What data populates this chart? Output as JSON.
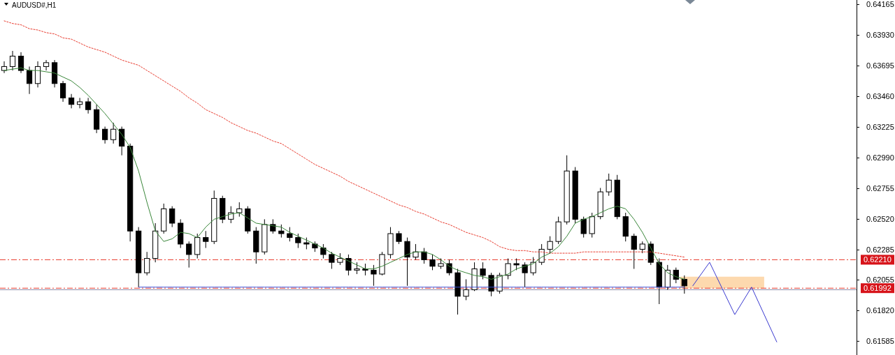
{
  "chart_data": {
    "type": "candlestick",
    "title": "AUDUSD#,H1",
    "color": "#000000",
    "categories": [
      null,
      null,
      null,
      null,
      null,
      null,
      null,
      null,
      null,
      null,
      null,
      null,
      null,
      null,
      null,
      null,
      null,
      null,
      null,
      null,
      null,
      null,
      null,
      null,
      null,
      null,
      null,
      null,
      null,
      null,
      null,
      null,
      null,
      null,
      null,
      null,
      null,
      null,
      null,
      null,
      null,
      null,
      null,
      null,
      null,
      null,
      null,
      null,
      null,
      null,
      null,
      null,
      null,
      null,
      null,
      null,
      null,
      null,
      null,
      null,
      null,
      null,
      null,
      null,
      null,
      null,
      null,
      null,
      null,
      null,
      null,
      null,
      null,
      null,
      null,
      null,
      null,
      null,
      null,
      null,
      null,
      null,
      null,
      null,
      null,
      null,
      null,
      null,
      null,
      null,
      null,
      null,
      null,
      null,
      null,
      null,
      null,
      null,
      null,
      null,
      null,
      null
    ],
    "ohlc": [
      [
        0.6366,
        0.6373,
        0.6364,
        0.6369
      ],
      [
        0.6369,
        0.6381,
        0.6366,
        0.6377
      ],
      [
        0.6377,
        0.638,
        0.6364,
        0.6366
      ],
      [
        0.6366,
        0.6369,
        0.6348,
        0.6356
      ],
      [
        0.6356,
        0.6373,
        0.6353,
        0.6369
      ],
      [
        0.6369,
        0.6374,
        0.6366,
        0.6372
      ],
      [
        0.6372,
        0.6374,
        0.6353,
        0.6356
      ],
      [
        0.6356,
        0.6358,
        0.6342,
        0.6345
      ],
      [
        0.6345,
        0.6348,
        0.6337,
        0.634
      ],
      [
        0.634,
        0.6345,
        0.6337,
        0.6342
      ],
      [
        0.6342,
        0.6345,
        0.6333,
        0.6336
      ],
      [
        0.6336,
        0.634,
        0.6318,
        0.6321
      ],
      [
        0.6321,
        0.6323,
        0.631,
        0.6313
      ],
      [
        0.6313,
        0.6326,
        0.631,
        0.6321
      ],
      [
        0.6321,
        0.6323,
        0.6301,
        0.6308
      ],
      [
        0.6308,
        0.631,
        0.6235,
        0.6243
      ],
      [
        0.6243,
        0.6246,
        0.62,
        0.6211
      ],
      [
        0.6211,
        0.6227,
        0.6209,
        0.6222
      ],
      [
        0.6222,
        0.6249,
        0.6219,
        0.6243
      ],
      [
        0.6243,
        0.6264,
        0.6241,
        0.626
      ],
      [
        0.626,
        0.6262,
        0.6246,
        0.6249
      ],
      [
        0.6249,
        0.6252,
        0.623,
        0.6233
      ],
      [
        0.6233,
        0.6235,
        0.6215,
        0.6225
      ],
      [
        0.6225,
        0.6241,
        0.6222,
        0.6238
      ],
      [
        0.6238,
        0.6243,
        0.623,
        0.6235
      ],
      [
        0.6235,
        0.6274,
        0.6233,
        0.6268
      ],
      [
        0.6268,
        0.627,
        0.6249,
        0.6252
      ],
      [
        0.6252,
        0.6262,
        0.6249,
        0.6257
      ],
      [
        0.6257,
        0.6265,
        0.6254,
        0.626
      ],
      [
        0.626,
        0.6262,
        0.6241,
        0.6243
      ],
      [
        0.6243,
        0.6246,
        0.6218,
        0.6227
      ],
      [
        0.6227,
        0.6252,
        0.6225,
        0.6248
      ],
      [
        0.6248,
        0.6252,
        0.6241,
        0.6243
      ],
      [
        0.6243,
        0.6248,
        0.6238,
        0.6241
      ],
      [
        0.6241,
        0.6246,
        0.6235,
        0.6238
      ],
      [
        0.6238,
        0.6241,
        0.623,
        0.6234
      ],
      [
        0.6234,
        0.6238,
        0.6229,
        0.6233
      ],
      [
        0.6233,
        0.6235,
        0.6227,
        0.623
      ],
      [
        0.623,
        0.6233,
        0.6222,
        0.6225
      ],
      [
        0.6225,
        0.6227,
        0.6214,
        0.6219
      ],
      [
        0.6219,
        0.6226,
        0.6217,
        0.6222
      ],
      [
        0.6222,
        0.6225,
        0.6209,
        0.6213
      ],
      [
        0.6213,
        0.6219,
        0.621,
        0.6214
      ],
      [
        0.6214,
        0.6218,
        0.6209,
        0.6213
      ],
      [
        0.6213,
        0.6217,
        0.6201,
        0.621
      ],
      [
        0.621,
        0.6227,
        0.6209,
        0.6225
      ],
      [
        0.6225,
        0.6246,
        0.6222,
        0.6241
      ],
      [
        0.6241,
        0.6243,
        0.6233,
        0.6235
      ],
      [
        0.6235,
        0.6238,
        0.6201,
        0.6223
      ],
      [
        0.6223,
        0.6233,
        0.6221,
        0.6227
      ],
      [
        0.6227,
        0.623,
        0.6218,
        0.6221
      ],
      [
        0.6221,
        0.6225,
        0.6213,
        0.6216
      ],
      [
        0.6216,
        0.6222,
        0.6214,
        0.6218
      ],
      [
        0.6218,
        0.6221,
        0.6209,
        0.6211
      ],
      [
        0.6211,
        0.6214,
        0.6179,
        0.6193
      ],
      [
        0.6193,
        0.6206,
        0.619,
        0.6198
      ],
      [
        0.6198,
        0.6219,
        0.6197,
        0.6214
      ],
      [
        0.6214,
        0.6219,
        0.6206,
        0.6209
      ],
      [
        0.6209,
        0.6211,
        0.6193,
        0.6197
      ],
      [
        0.6197,
        0.6211,
        0.6195,
        0.6209
      ],
      [
        0.6209,
        0.6222,
        0.6206,
        0.6218
      ],
      [
        0.6218,
        0.6222,
        0.6213,
        0.6217
      ],
      [
        0.6217,
        0.6219,
        0.62,
        0.6211
      ],
      [
        0.6211,
        0.6223,
        0.6209,
        0.6219
      ],
      [
        0.6219,
        0.6233,
        0.6217,
        0.6229
      ],
      [
        0.6229,
        0.6239,
        0.6226,
        0.6235
      ],
      [
        0.6235,
        0.6254,
        0.6233,
        0.625
      ],
      [
        0.625,
        0.6301,
        0.6248,
        0.6289
      ],
      [
        0.6289,
        0.6292,
        0.6249,
        0.6252
      ],
      [
        0.6252,
        0.6254,
        0.6238,
        0.6241
      ],
      [
        0.6241,
        0.6257,
        0.6238,
        0.6254
      ],
      [
        0.6254,
        0.6276,
        0.6252,
        0.6273
      ],
      [
        0.6273,
        0.6287,
        0.627,
        0.6282
      ],
      [
        0.6282,
        0.6286,
        0.6252,
        0.6254
      ],
      [
        0.6254,
        0.6257,
        0.6235,
        0.6239
      ],
      [
        0.6239,
        0.6241,
        0.6214,
        0.6229
      ],
      [
        0.6229,
        0.6235,
        0.6226,
        0.6233
      ],
      [
        0.6233,
        0.6235,
        0.6217,
        0.6219
      ],
      [
        0.6219,
        0.6222,
        0.6187,
        0.62
      ],
      [
        0.62,
        0.6217,
        0.6198,
        0.6213
      ],
      [
        0.6213,
        0.6215,
        0.6203,
        0.6206
      ],
      [
        0.6206,
        0.6209,
        0.6195,
        0.6201
      ],
      null,
      null,
      null,
      null,
      null,
      null,
      null,
      null,
      null,
      null,
      null,
      null,
      null,
      null,
      null,
      null,
      null,
      null,
      null,
      null
    ],
    "series": [
      {
        "type": "line",
        "color": "#e8382b",
        "line_style": "dotted",
        "values": [
          0.6404,
          0.6402,
          0.6401,
          0.6398,
          0.6397,
          0.6395,
          0.6394,
          0.6391,
          0.639,
          0.6387,
          0.6384,
          0.6382,
          0.638,
          0.6377,
          0.6374,
          0.6372,
          0.637,
          0.6366,
          0.6362,
          0.6358,
          0.6354,
          0.635,
          0.6345,
          0.6341,
          0.6336,
          0.6333,
          0.633,
          0.6326,
          0.6323,
          0.632,
          0.6318,
          0.6315,
          0.6312,
          0.631,
          0.6306,
          0.6302,
          0.6298,
          0.6294,
          0.6291,
          0.6288,
          0.6285,
          0.6281,
          0.6278,
          0.6275,
          0.6272,
          0.6269,
          0.6266,
          0.6263,
          0.6261,
          0.6258,
          0.6256,
          0.6253,
          0.625,
          0.6248,
          0.6245,
          0.6242,
          0.624,
          0.6238,
          0.6235,
          0.6231,
          0.6229,
          0.6228,
          0.6228,
          0.6227,
          0.6227,
          0.6226,
          0.6226,
          0.6226,
          0.6226,
          0.6227,
          0.6227,
          0.6227,
          0.6227,
          0.6227,
          0.6227,
          0.6227,
          0.6227,
          0.6227,
          0.6226,
          0.6225,
          0.6224,
          0.6223,
          null,
          null,
          null,
          null,
          null,
          null,
          null,
          null,
          null,
          null,
          null,
          null,
          null,
          null,
          null,
          null,
          null,
          null,
          null,
          null
        ]
      },
      {
        "type": "line",
        "color": "#3a873a",
        "line_style": "solid",
        "values": [
          0.6366,
          0.6367,
          0.6368,
          0.6366,
          0.6366,
          0.6365,
          0.6364,
          0.6361,
          0.6358,
          0.6353,
          0.6347,
          0.634,
          0.6333,
          0.6325,
          0.6317,
          0.6307,
          0.6289,
          0.6265,
          0.6243,
          0.6235,
          0.6237,
          0.6242,
          0.6241,
          0.6238,
          0.6246,
          0.6252,
          0.6254,
          0.6256,
          0.6257,
          0.6253,
          0.6249,
          0.6248,
          0.6247,
          0.6246,
          0.6242,
          0.6239,
          0.6236,
          0.6233,
          0.623,
          0.6226,
          0.6223,
          0.622,
          0.6217,
          0.6214,
          0.6214,
          0.6216,
          0.6219,
          0.6222,
          0.6225,
          0.6227,
          0.6227,
          0.6225,
          0.6221,
          0.6216,
          0.6213,
          0.6211,
          0.6209,
          0.6208,
          0.6206,
          0.6208,
          0.621,
          0.6214,
          0.6216,
          0.6218,
          0.6223,
          0.6226,
          0.6231,
          0.6239,
          0.6249,
          0.6252,
          0.6254,
          0.6257,
          0.626,
          0.6262,
          0.626,
          0.6252,
          0.6242,
          0.623,
          0.6218,
          0.6211,
          0.6208,
          0.6206,
          null,
          null,
          null,
          null,
          null,
          null,
          null,
          null,
          null,
          null,
          null,
          null,
          null,
          null,
          null,
          null,
          null,
          null,
          null,
          null
        ]
      },
      {
        "type": "line",
        "color": "#3c50d8",
        "line_style": "solid",
        "values": [
          null,
          null,
          null,
          null,
          null,
          null,
          null,
          null,
          null,
          null,
          null,
          null,
          null,
          null,
          null,
          null,
          0.62,
          0.62,
          0.62,
          0.62,
          0.62,
          0.62,
          0.62,
          0.62,
          0.62,
          0.62,
          0.62,
          0.62,
          0.62,
          0.62,
          0.62,
          0.62,
          0.62,
          0.62,
          0.62,
          0.62,
          0.62,
          0.62,
          0.62,
          0.62,
          0.62,
          0.62,
          0.62,
          0.62,
          0.62,
          0.62,
          0.62,
          0.62,
          0.62,
          0.62,
          0.62,
          0.62,
          0.62,
          0.62,
          0.62,
          0.62,
          0.62,
          0.62,
          0.62,
          0.62,
          0.62,
          0.62,
          0.62,
          0.62,
          0.62,
          0.62,
          0.62,
          0.62,
          0.62,
          0.62,
          0.62,
          0.62,
          0.62,
          0.62,
          0.62,
          0.62,
          0.62,
          0.62,
          0.62,
          0.62,
          0.62,
          0.62,
          null,
          null,
          null,
          null,
          null,
          null,
          null,
          null,
          null,
          null,
          null,
          null,
          null,
          null,
          null,
          null,
          null,
          null,
          null,
          null
        ]
      },
      {
        "type": "line",
        "color": "#3a3ad0",
        "line_style": "solid",
        "values": [
          null,
          null,
          null,
          null,
          null,
          null,
          null,
          null,
          null,
          null,
          null,
          null,
          null,
          null,
          null,
          null,
          null,
          null,
          null,
          null,
          null,
          null,
          null,
          null,
          null,
          null,
          null,
          null,
          null,
          null,
          null,
          null,
          null,
          null,
          null,
          null,
          null,
          null,
          null,
          null,
          null,
          null,
          null,
          null,
          null,
          null,
          null,
          null,
          null,
          null,
          null,
          null,
          null,
          null,
          null,
          null,
          null,
          null,
          null,
          null,
          null,
          null,
          null,
          null,
          null,
          null,
          null,
          null,
          null,
          null,
          null,
          null,
          null,
          null,
          null,
          null,
          null,
          null,
          null,
          null,
          null,
          null,
          0.6201,
          null,
          0.6219,
          null,
          null,
          0.6179,
          null,
          0.62,
          null,
          null,
          0.6158,
          null,
          null,
          null,
          null,
          null,
          null,
          null,
          null,
          null
        ]
      }
    ],
    "bands": [
      {
        "axis": "y",
        "from": 0.6199,
        "to": 0.6208,
        "color": "#fdd9ae"
      }
    ],
    "ref_lines": [
      {
        "axis": "y",
        "value": 0.6221,
        "label": "0.62210",
        "color": "#e8382b",
        "line_style": "dashed"
      },
      {
        "axis": "y",
        "value": 0.61992,
        "label": "0.61992",
        "color": "#e8382b",
        "line_style": "dashed"
      },
      {
        "axis": "y",
        "value": 0.6198,
        "label": null,
        "color": "#8c8ca8",
        "line_style": "solid"
      }
    ],
    "ylim": [
      0.6148,
      0.642
    ],
    "yticks": [
      0.64165,
      {
        "value": 0.6393,
        "label": "0.63930"
      },
      0.63695,
      {
        "value": 0.6346,
        "label": "0.63460"
      },
      0.63225,
      {
        "value": 0.6299,
        "label": "0.62990"
      },
      0.62755,
      {
        "value": 0.6252,
        "label": "0.62520"
      },
      0.62285,
      0.62055,
      {
        "value": 0.6182,
        "label": "0.61820"
      },
      0.61585
    ],
    "tick_labels": "y",
    "grid": false
  }
}
